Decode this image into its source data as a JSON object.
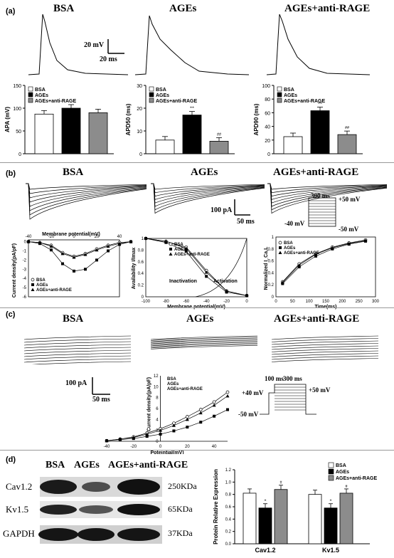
{
  "panel_a": {
    "label": "(a)",
    "conditions": [
      "BSA",
      "AGEs",
      "AGEs+anti-RAGE"
    ],
    "scale_mv": "20 mV",
    "scale_ms": "20 ms",
    "legend": [
      "BSA",
      "AGEs",
      "AGEs+anti-RAGE"
    ]
  },
  "panel_b": {
    "label": "(b)",
    "conditions": [
      "BSA",
      "AGEs",
      "AGEs+anti-RAGE"
    ],
    "scale_pa": "100 pA",
    "scale_ms": "50 ms",
    "protocol": {
      "duration": "300 ms",
      "high": "+50 mV",
      "hold": "-40 mV",
      "low": "-50 mV"
    },
    "iv_xlabel": "Membrane potential(mV)",
    "iv_ylabel": "Current density(pA/pF)",
    "avail_ylabel": "Availability I/Imax",
    "avail_xlabel": "Membrane potential(mV)",
    "inactivation": "Inactivation",
    "activation": "Activation",
    "rec_ylabel": "Normalized I_Ca,L",
    "rec_xlabel": "Time(ms)",
    "legend": [
      "BSA",
      "AGEs",
      "AGEs+anti-RAGE"
    ]
  },
  "panel_c": {
    "label": "(c)",
    "conditions": [
      "BSA",
      "AGEs",
      "AGEs+anti-RAGE"
    ],
    "scale_pa": "100 pA",
    "scale_ms": "50 ms",
    "ylabel": "Current density(pA/pF)",
    "xlabel": "Poteintial(mV)",
    "legend": [
      "BSA",
      "AGEs",
      "AGEs+anti-RAGE"
    ],
    "protocol": {
      "t1": "100 ms",
      "t2": "300 ms",
      "v1": "+40 mV",
      "v2": "+50 mV",
      "v3": "-50 mV"
    }
  },
  "panel_d": {
    "label": "(d)",
    "conditions": [
      "BSA",
      "AGEs",
      "AGEs+anti-RAGE"
    ],
    "proteins": [
      "Cav1.2",
      "Kv1.5",
      "GAPDH"
    ],
    "weights": [
      "250KDa",
      "65KDa",
      "37KDa"
    ],
    "ylabel": "Protein Relative Expression",
    "legend": [
      "BSA",
      "AGEs",
      "AGEs+anti-RAGE"
    ]
  },
  "chart_data": [
    {
      "type": "bar",
      "categories": [
        "BSA",
        "AGEs",
        "AGEs+anti-RAGE"
      ],
      "values": [
        87,
        100,
        90
      ],
      "ylabel": "APA (mV)",
      "ylim": [
        0,
        150
      ],
      "yticks": [
        0,
        50,
        100,
        150
      ],
      "colors": [
        "#ffffff",
        "#000000",
        "#8c8c8c"
      ]
    },
    {
      "type": "bar",
      "categories": [
        "BSA",
        "AGEs",
        "AGEs+anti-RAGE"
      ],
      "values": [
        6,
        17,
        5.5
      ],
      "ylabel": "APD50 (ms)",
      "ylim": [
        0,
        30
      ],
      "yticks": [
        0,
        10,
        20,
        30
      ],
      "annotations": [
        "",
        "**",
        "##"
      ],
      "colors": [
        "#ffffff",
        "#000000",
        "#8c8c8c"
      ]
    },
    {
      "type": "bar",
      "categories": [
        "BSA",
        "AGEs",
        "AGEs+anti-RAGE"
      ],
      "values": [
        25,
        63,
        28
      ],
      "ylabel": "APD90 (ms)",
      "ylim": [
        0,
        100
      ],
      "yticks": [
        0,
        20,
        40,
        60,
        80,
        100
      ],
      "annotations": [
        "",
        "**",
        "##"
      ],
      "colors": [
        "#ffffff",
        "#000000",
        "#8c8c8c"
      ]
    },
    {
      "type": "line",
      "x": [
        -40,
        -30,
        -20,
        -10,
        0,
        10,
        20,
        30,
        40,
        50
      ],
      "series": [
        {
          "name": "BSA",
          "values": [
            0,
            -0.1,
            -0.4,
            -1.2,
            -1.6,
            -1.3,
            -0.8,
            -0.4,
            -0.1,
            0
          ]
        },
        {
          "name": "AGEs",
          "values": [
            0,
            -0.2,
            -0.9,
            -2.4,
            -3.2,
            -3.0,
            -2.0,
            -1.0,
            -0.3,
            0
          ]
        },
        {
          "name": "AGEs+anti-RAGE",
          "values": [
            0,
            -0.1,
            -0.5,
            -1.3,
            -1.7,
            -1.4,
            -0.9,
            -0.5,
            -0.2,
            0
          ]
        }
      ],
      "xticks": [
        -40,
        -20,
        0,
        20,
        40
      ],
      "yticks": [
        0,
        -1,
        -2,
        -3,
        -4,
        -5,
        -6
      ],
      "ylim": [
        -6,
        0.2
      ]
    },
    {
      "type": "line",
      "x": [
        -100,
        -80,
        -60,
        -40,
        -20,
        0
      ],
      "series": [
        {
          "name": "BSA",
          "values": [
            1.0,
            0.95,
            0.85,
            0.45,
            0.1,
            0.02
          ]
        },
        {
          "name": "AGEs",
          "values": [
            1.0,
            0.93,
            0.78,
            0.35,
            0.08,
            0.02
          ]
        },
        {
          "name": "AGEs+anti-RAGE",
          "values": [
            1.0,
            0.95,
            0.83,
            0.42,
            0.1,
            0.02
          ]
        }
      ],
      "xticks": [
        -100,
        -80,
        -60,
        -40,
        -20,
        0
      ],
      "yticks": [
        0.0,
        0.2,
        0.4,
        0.6,
        0.8,
        1.0
      ],
      "ylim": [
        0,
        1.0
      ]
    },
    {
      "type": "line",
      "x": [
        20,
        70,
        120,
        170,
        220,
        270
      ],
      "series": [
        {
          "name": "BSA",
          "values": [
            0.25,
            0.55,
            0.72,
            0.83,
            0.9,
            0.95
          ]
        },
        {
          "name": "AGEs",
          "values": [
            0.22,
            0.5,
            0.68,
            0.8,
            0.88,
            0.93
          ]
        },
        {
          "name": "AGEs+anti-RAGE",
          "values": [
            0.24,
            0.53,
            0.71,
            0.82,
            0.89,
            0.94
          ]
        }
      ],
      "xticks": [
        0,
        50,
        100,
        150,
        200,
        250,
        300
      ],
      "yticks": [
        0.0,
        0.2,
        0.4,
        0.6,
        0.8,
        1.0
      ],
      "ylim": [
        0,
        1.0
      ]
    },
    {
      "type": "line",
      "x": [
        -40,
        -30,
        -20,
        -10,
        0,
        10,
        20,
        30,
        40,
        50
      ],
      "series": [
        {
          "name": "BSA",
          "values": [
            0.1,
            0.4,
            0.8,
            1.5,
            2.3,
            3.3,
            4.5,
            5.8,
            7.2,
            9.0
          ]
        },
        {
          "name": "AGEs",
          "values": [
            0.1,
            0.3,
            0.5,
            0.9,
            1.3,
            1.9,
            2.6,
            3.5,
            4.6,
            5.8
          ]
        },
        {
          "name": "AGEs+anti-RAGE",
          "values": [
            0.1,
            0.4,
            0.7,
            1.3,
            2.0,
            2.9,
            4.0,
            5.2,
            6.6,
            8.3
          ]
        }
      ],
      "xticks": [
        -40,
        -20,
        0,
        20,
        40
      ],
      "yticks": [
        0,
        2,
        4,
        6,
        8,
        10,
        12
      ],
      "ylim": [
        0,
        12
      ]
    },
    {
      "type": "bar",
      "categories": [
        "Cav1.2",
        "Kv1.5"
      ],
      "series": [
        {
          "name": "BSA",
          "values": [
            0.82,
            0.8
          ]
        },
        {
          "name": "AGEs",
          "values": [
            0.58,
            0.58
          ]
        },
        {
          "name": "AGEs+anti-RAGE",
          "values": [
            0.88,
            0.82
          ]
        }
      ],
      "ylabel": "Protein Relative Expression",
      "ylim": [
        0,
        1.2
      ],
      "yticks": [
        0.0,
        0.2,
        0.4,
        0.6,
        0.8,
        1.0,
        1.2
      ],
      "annotations": [
        "*",
        "#"
      ]
    }
  ]
}
